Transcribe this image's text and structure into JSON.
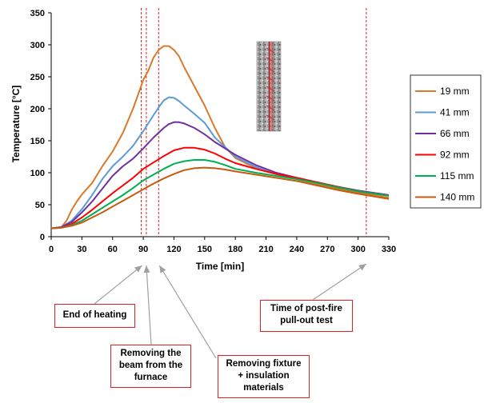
{
  "chart_data": {
    "type": "line",
    "xlabel": "Time [min]",
    "ylabel": "Temperature [°C]",
    "xlim": [
      0,
      330
    ],
    "ylim": [
      0,
      350
    ],
    "xticks": [
      0,
      30,
      60,
      90,
      120,
      150,
      180,
      210,
      240,
      270,
      300,
      330
    ],
    "yticks": [
      0,
      50,
      100,
      150,
      200,
      250,
      300,
      350
    ],
    "grid": false,
    "legend_position": "right",
    "vertical_markers": [
      88,
      93,
      105,
      308
    ],
    "marker_color": "#e02020",
    "series": [
      {
        "name": "19 mm",
        "color": "#d97a2b",
        "x": [
          0,
          10,
          15,
          20,
          25,
          30,
          40,
          50,
          60,
          70,
          80,
          90,
          95,
          100,
          105,
          110,
          115,
          120,
          125,
          130,
          140,
          150,
          160,
          170,
          180,
          200,
          220,
          240,
          260,
          280,
          300,
          330
        ],
        "y": [
          13,
          15,
          25,
          42,
          55,
          66,
          84,
          110,
          133,
          162,
          200,
          245,
          260,
          280,
          292,
          298,
          298,
          292,
          282,
          265,
          235,
          205,
          170,
          140,
          123,
          107,
          98,
          90,
          82,
          75,
          69,
          61
        ]
      },
      {
        "name": "41 mm",
        "color": "#5b9bd5",
        "x": [
          0,
          10,
          20,
          30,
          40,
          50,
          60,
          70,
          80,
          90,
          100,
          105,
          110,
          115,
          120,
          125,
          130,
          140,
          150,
          160,
          170,
          180,
          200,
          220,
          240,
          260,
          280,
          300,
          330
        ],
        "y": [
          13,
          15,
          25,
          43,
          65,
          90,
          110,
          125,
          142,
          165,
          190,
          202,
          213,
          218,
          217,
          212,
          205,
          192,
          178,
          155,
          140,
          125,
          109,
          98,
          91,
          84,
          78,
          72,
          65
        ]
      },
      {
        "name": "66 mm",
        "color": "#7030a0",
        "x": [
          0,
          10,
          20,
          30,
          40,
          50,
          60,
          70,
          80,
          90,
          100,
          110,
          115,
          120,
          125,
          130,
          140,
          150,
          160,
          170,
          180,
          200,
          220,
          240,
          260,
          280,
          300,
          330
        ],
        "y": [
          13,
          15,
          23,
          38,
          55,
          75,
          95,
          110,
          122,
          138,
          155,
          170,
          176,
          179,
          179,
          177,
          170,
          160,
          148,
          138,
          128,
          112,
          100,
          92,
          85,
          78,
          72,
          65
        ]
      },
      {
        "name": "92 mm",
        "color": "#ff0000",
        "x": [
          0,
          10,
          20,
          30,
          40,
          50,
          60,
          70,
          80,
          90,
          100,
          110,
          120,
          130,
          140,
          150,
          160,
          170,
          180,
          200,
          220,
          240,
          260,
          280,
          300,
          330
        ],
        "y": [
          13,
          14,
          20,
          30,
          42,
          55,
          68,
          80,
          92,
          106,
          116,
          126,
          135,
          139,
          139,
          136,
          130,
          122,
          115,
          106,
          98,
          92,
          85,
          78,
          71,
          64
        ]
      },
      {
        "name": "115 mm",
        "color": "#00b050",
        "x": [
          0,
          10,
          20,
          30,
          40,
          50,
          60,
          70,
          80,
          90,
          100,
          110,
          120,
          130,
          140,
          150,
          160,
          170,
          180,
          200,
          220,
          240,
          260,
          280,
          300,
          330
        ],
        "y": [
          13,
          14,
          18,
          25,
          35,
          45,
          55,
          65,
          76,
          88,
          97,
          106,
          114,
          118,
          120,
          120,
          117,
          112,
          106,
          100,
          95,
          90,
          84,
          77,
          71,
          64
        ]
      },
      {
        "name": "140 mm",
        "color": "#c55a11",
        "x": [
          0,
          10,
          20,
          30,
          40,
          50,
          60,
          70,
          80,
          90,
          100,
          110,
          120,
          130,
          140,
          150,
          160,
          170,
          180,
          200,
          220,
          240,
          260,
          280,
          300,
          330
        ],
        "y": [
          13,
          14,
          17,
          22,
          30,
          38,
          47,
          56,
          65,
          74,
          83,
          91,
          98,
          104,
          107,
          108,
          107,
          105,
          102,
          97,
          92,
          87,
          80,
          73,
          67,
          59
        ]
      }
    ]
  },
  "annotations": {
    "end_of_heating": [
      "End of heating"
    ],
    "removing_beam": [
      "Removing the",
      "beam from the",
      "furnace"
    ],
    "removing_fixture": [
      "Removing fixture",
      "+ insulation",
      "materials"
    ],
    "post_fire": [
      "Time of post-fire",
      "pull-out test"
    ]
  }
}
